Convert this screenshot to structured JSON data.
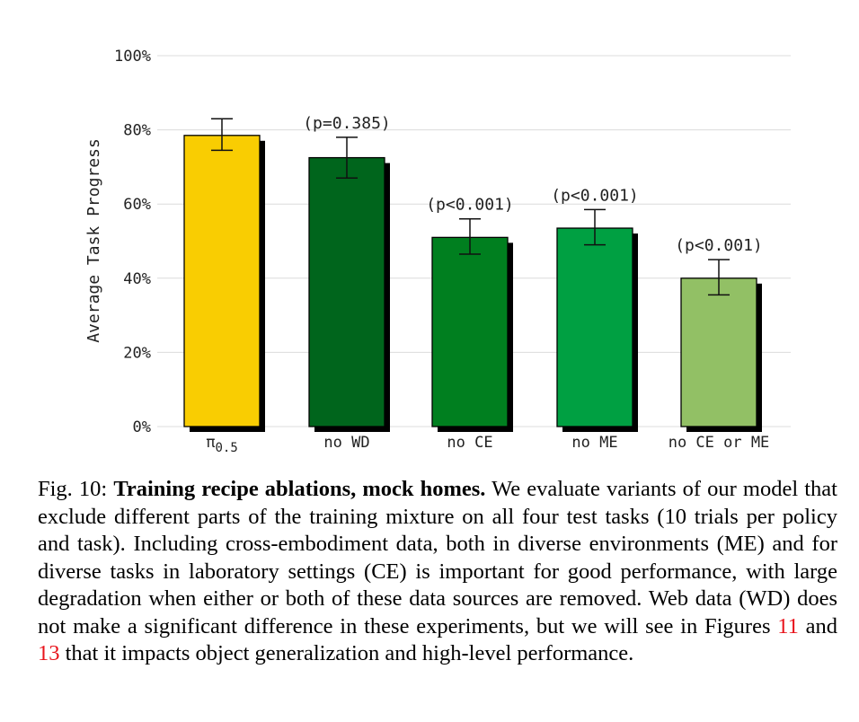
{
  "chart_data": {
    "type": "bar",
    "title": "",
    "xlabel": "",
    "ylabel": "Average Task Progress",
    "ylim": [
      0,
      100
    ],
    "yticks": [
      "0%",
      "20%",
      "40%",
      "60%",
      "80%",
      "100%"
    ],
    "categories": [
      "π0.5",
      "no WD",
      "no CE",
      "no ME",
      "no CE or ME"
    ],
    "category_base": [
      "π",
      "no WD",
      "no CE",
      "no ME",
      "no CE or ME"
    ],
    "category_sub": [
      "0.5",
      "",
      "",
      "",
      ""
    ],
    "values": [
      78.5,
      72.5,
      51.0,
      53.5,
      40.0
    ],
    "err_low": [
      74.5,
      67.0,
      46.5,
      49.0,
      35.5
    ],
    "err_high": [
      83.0,
      78.0,
      56.0,
      58.5,
      45.0
    ],
    "annotations": [
      "",
      "(p=0.385)",
      "(p<0.001)",
      "(p<0.001)",
      "(p<0.001)"
    ],
    "colors": [
      "#f9cd02",
      "#00651c",
      "#007f1f",
      "#00a042",
      "#92c065"
    ],
    "grid": true
  },
  "caption": {
    "label": "Fig. 10: ",
    "title": "Training recipe ablations, mock homes.",
    "text_1": " We evaluate variants of our model that exclude different parts of the training mixture on all four test tasks (10 trials per policy and task). Including cross-embodiment data, both in diverse environments (ME) and for diverse tasks in laboratory settings (CE) is important for good performance, with large degradation when either or both of these data sources are removed. Web data (WD) does not make a significant difference in these experiments, but we will see in Figures ",
    "ref_1": "11",
    "text_2": " and ",
    "ref_2": "13",
    "text_3": " that it impacts object generalization and high-level performance."
  }
}
